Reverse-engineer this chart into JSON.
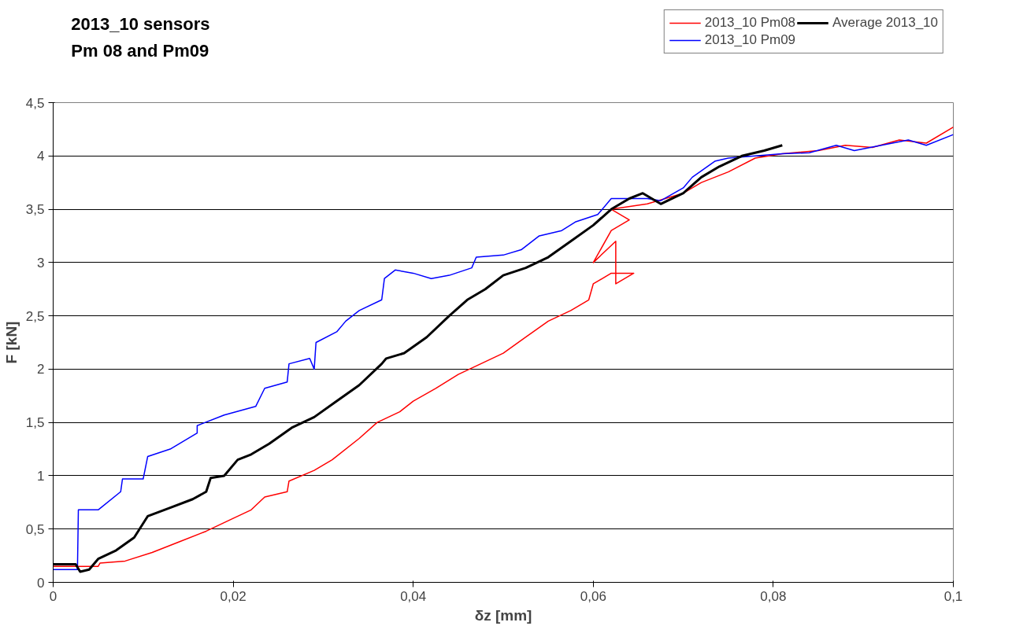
{
  "chart_data": {
    "type": "line",
    "title": "2013_10 sensors\nPm 08 and Pm09",
    "xlabel": "δz [mm]",
    "ylabel": "F [kN]",
    "xlim": [
      0,
      0.1
    ],
    "ylim": [
      0,
      4.5
    ],
    "xticks": [
      0,
      {
        "value": 0.02,
        "label": "0,02"
      },
      {
        "value": 0.04,
        "label": "0,04"
      },
      {
        "value": 0.06,
        "label": "0,06"
      },
      {
        "value": 0.08,
        "label": "0,08"
      },
      {
        "value": 0.1,
        "label": "0,1"
      }
    ],
    "yticks": [
      0,
      {
        "value": 0.5,
        "label": "0,5"
      },
      1,
      {
        "value": 1.5,
        "label": "1,5"
      },
      2,
      {
        "value": 2.5,
        "label": "2,5"
      },
      3,
      {
        "value": 3.5,
        "label": "3,5"
      },
      4,
      {
        "value": 4.5,
        "label": "4,5"
      }
    ],
    "grid": "y",
    "legend": "top right",
    "marker": "none",
    "series": [
      {
        "name": "2013_10 Pm08",
        "color": "#ff0000",
        "x": [
          0,
          0.005,
          0.0052,
          0.008,
          0.011,
          0.014,
          0.017,
          0.02,
          0.022,
          0.0235,
          0.026,
          0.0262,
          0.029,
          0.031,
          0.034,
          0.036,
          0.0385,
          0.04,
          0.0425,
          0.045,
          0.0475,
          0.05,
          0.0525,
          0.055,
          0.0575,
          0.0595,
          0.06,
          0.062,
          0.0645,
          0.0625,
          0.0625,
          0.06,
          0.062,
          0.064,
          0.062,
          0.066,
          0.068,
          0.07,
          0.072,
          0.075,
          0.078,
          0.081,
          0.085,
          0.088,
          0.091,
          0.094,
          0.097,
          0.1
        ],
        "values": [
          0.15,
          0.15,
          0.18,
          0.2,
          0.28,
          0.38,
          0.48,
          0.6,
          0.68,
          0.8,
          0.85,
          0.95,
          1.05,
          1.15,
          1.35,
          1.5,
          1.6,
          1.7,
          1.82,
          1.95,
          2.05,
          2.15,
          2.3,
          2.45,
          2.55,
          2.65,
          2.8,
          2.9,
          2.9,
          2.8,
          3.2,
          3.0,
          3.3,
          3.4,
          3.5,
          3.55,
          3.6,
          3.65,
          3.75,
          3.85,
          3.98,
          4.02,
          4.05,
          4.1,
          4.08,
          4.15,
          4.12,
          4.27
        ]
      },
      {
        "name": "2013_10 Pm09",
        "color": "#0000ff",
        "x": [
          0,
          0.0027,
          0.0028,
          0.005,
          0.0075,
          0.0077,
          0.01,
          0.0105,
          0.013,
          0.016,
          0.016,
          0.019,
          0.0225,
          0.0235,
          0.026,
          0.0262,
          0.0285,
          0.029,
          0.0292,
          0.0315,
          0.0325,
          0.034,
          0.0365,
          0.0368,
          0.038,
          0.04,
          0.042,
          0.044,
          0.0465,
          0.047,
          0.05,
          0.052,
          0.054,
          0.0565,
          0.058,
          0.0605,
          0.062,
          0.064,
          0.066,
          0.0675,
          0.07,
          0.071,
          0.0735,
          0.075,
          0.078,
          0.081,
          0.084,
          0.087,
          0.089,
          0.092,
          0.095,
          0.097,
          0.1
        ],
        "values": [
          0.12,
          0.12,
          0.68,
          0.68,
          0.85,
          0.97,
          0.97,
          1.18,
          1.25,
          1.4,
          1.47,
          1.57,
          1.65,
          1.82,
          1.88,
          2.05,
          2.1,
          2.0,
          2.25,
          2.35,
          2.45,
          2.55,
          2.65,
          2.85,
          2.93,
          2.9,
          2.85,
          2.88,
          2.95,
          3.05,
          3.07,
          3.12,
          3.25,
          3.3,
          3.38,
          3.45,
          3.6,
          3.6,
          3.6,
          3.58,
          3.7,
          3.8,
          3.95,
          3.98,
          4.0,
          4.02,
          4.03,
          4.1,
          4.05,
          4.1,
          4.15,
          4.1,
          4.2
        ]
      },
      {
        "name": "Average 2013_10",
        "color": "#000000",
        "x": [
          0,
          0.0025,
          0.003,
          0.004,
          0.005,
          0.007,
          0.009,
          0.0105,
          0.013,
          0.0155,
          0.017,
          0.0175,
          0.019,
          0.0205,
          0.022,
          0.024,
          0.0265,
          0.029,
          0.0315,
          0.034,
          0.0365,
          0.037,
          0.039,
          0.0415,
          0.044,
          0.046,
          0.048,
          0.05,
          0.0525,
          0.055,
          0.0575,
          0.06,
          0.062,
          0.064,
          0.0655,
          0.0675,
          0.07,
          0.072,
          0.074,
          0.0765,
          0.079,
          0.081
        ],
        "values": [
          0.17,
          0.17,
          0.1,
          0.12,
          0.22,
          0.3,
          0.42,
          0.62,
          0.7,
          0.78,
          0.85,
          0.98,
          1.0,
          1.15,
          1.2,
          1.3,
          1.45,
          1.55,
          1.7,
          1.85,
          2.05,
          2.1,
          2.15,
          2.3,
          2.5,
          2.65,
          2.75,
          2.88,
          2.95,
          3.05,
          3.2,
          3.35,
          3.5,
          3.6,
          3.65,
          3.55,
          3.65,
          3.8,
          3.9,
          4.0,
          4.05,
          4.1
        ]
      }
    ]
  }
}
